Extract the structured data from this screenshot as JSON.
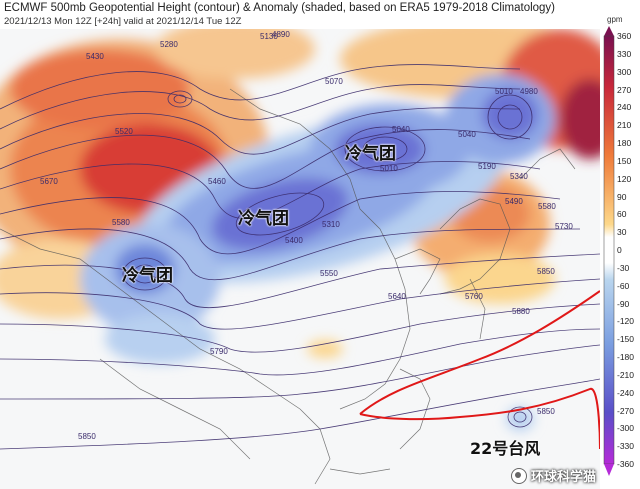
{
  "header": {
    "title": "ECMWF 500mb Geopotential Height (contour) & Anomaly (shaded, based on ERA5 1979-2018 Climatology)",
    "subtitle": "2021/12/13 Mon 12Z [+24h] valid at 2021/12/14 Tue 12Z"
  },
  "annotations": {
    "cold_air_mass_1": "冷气团",
    "cold_air_mass_2": "冷气团",
    "cold_air_mass_3": "冷气团",
    "typhoon": "22号台风"
  },
  "contour_labels": [
    "5430",
    "5520",
    "5670",
    "5580",
    "5460",
    "5070",
    "5040",
    "5010",
    "5310",
    "5400",
    "5550",
    "5640",
    "5790",
    "5190",
    "5340",
    "5490",
    "5580",
    "5730",
    "5850",
    "5880",
    "5760",
    "5010",
    "4980",
    "5850",
    "5850",
    "5040",
    "5130",
    "4890",
    "5280"
  ],
  "watermark": {
    "text": "环球科学猫"
  },
  "legend": {
    "unit": "gpm",
    "ticks": [
      "360",
      "330",
      "300",
      "270",
      "240",
      "210",
      "180",
      "150",
      "120",
      "90",
      "60",
      "30",
      "0",
      "-30",
      "-60",
      "-90",
      "-120",
      "-150",
      "-180",
      "-210",
      "-240",
      "-270",
      "-300",
      "-330",
      "-360"
    ],
    "colors": {
      "positive_max": "#7a1050",
      "positive_high": "#c8283a",
      "positive_mid": "#ef7b3a",
      "positive_low": "#fdd88a",
      "neutral": "#ffffff",
      "negative_low": "#b9d5ee",
      "negative_mid": "#7b9ee0",
      "negative_high": "#5a4fc8",
      "negative_max": "#b52bd8"
    }
  },
  "colors": {
    "contour": "#3a2b6b",
    "contour_5880": "#e01818",
    "land": "#f7f7f7",
    "border": "#555555"
  }
}
